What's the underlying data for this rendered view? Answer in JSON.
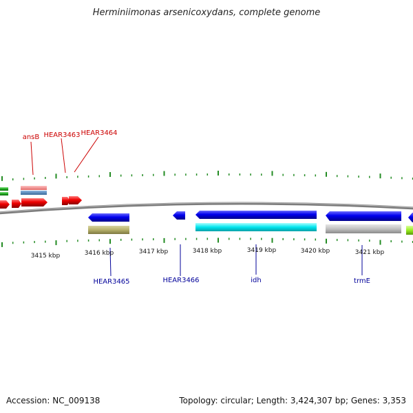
{
  "title": "Herminiimonas arsenicoxydans, complete genome",
  "footer": {
    "accession": "Accession: NC_009138",
    "topology": "Topology: circular; Length: 3,424,307 bp; Genes: 3,353"
  },
  "ruler": {
    "labels": [
      "3415 kbp",
      "3416 kbp",
      "3417 kbp",
      "3418 kbp",
      "3419 kbp",
      "3420 kbp",
      "3421 kbp"
    ]
  },
  "labels_top": [
    "ansB",
    "HEAR3463",
    "HEAR3464"
  ],
  "labels_bottom": [
    "HEAR3465",
    "HEAR3466",
    "idh",
    "trmE"
  ],
  "colors": {
    "tick": "#228b22",
    "backbone": "#8a8a8a",
    "red": "#ee0000",
    "green": "#22aa22",
    "pink": "#f08080",
    "steelblue": "#4682b4",
    "blue": "#0000ee",
    "cyan": "#00e5ee",
    "olive": "#b5b06a",
    "gray": "#bdbdbd",
    "lime": "#99ee22",
    "label_red": "#cc0000",
    "label_blue": "#000099"
  }
}
